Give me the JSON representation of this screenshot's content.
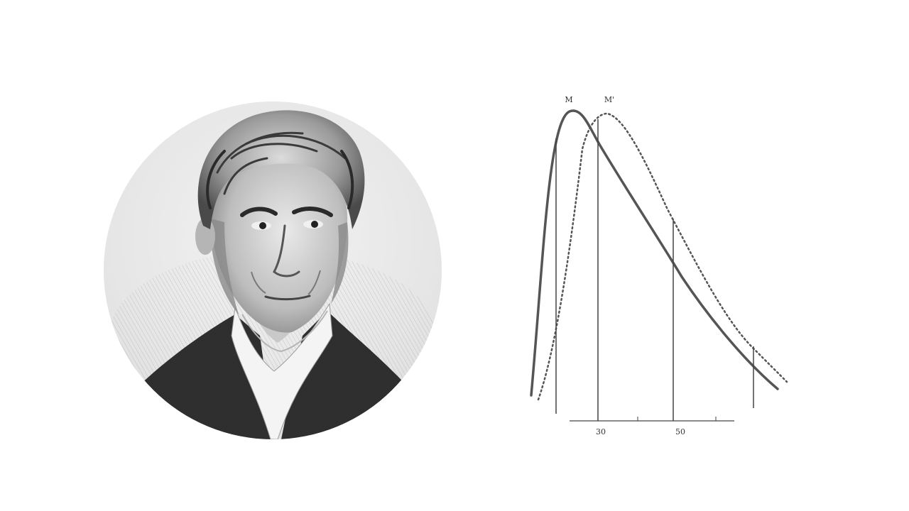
{
  "colors": {
    "background": "#ffffff",
    "ink": "#555555",
    "portrait_background": "#e6e6e6"
  },
  "portrait": {
    "icon": "engraved-portrait-icon"
  },
  "figure": {
    "peak_labels": [
      "M",
      "M'"
    ],
    "tick_labels": [
      "30",
      "50"
    ]
  }
}
